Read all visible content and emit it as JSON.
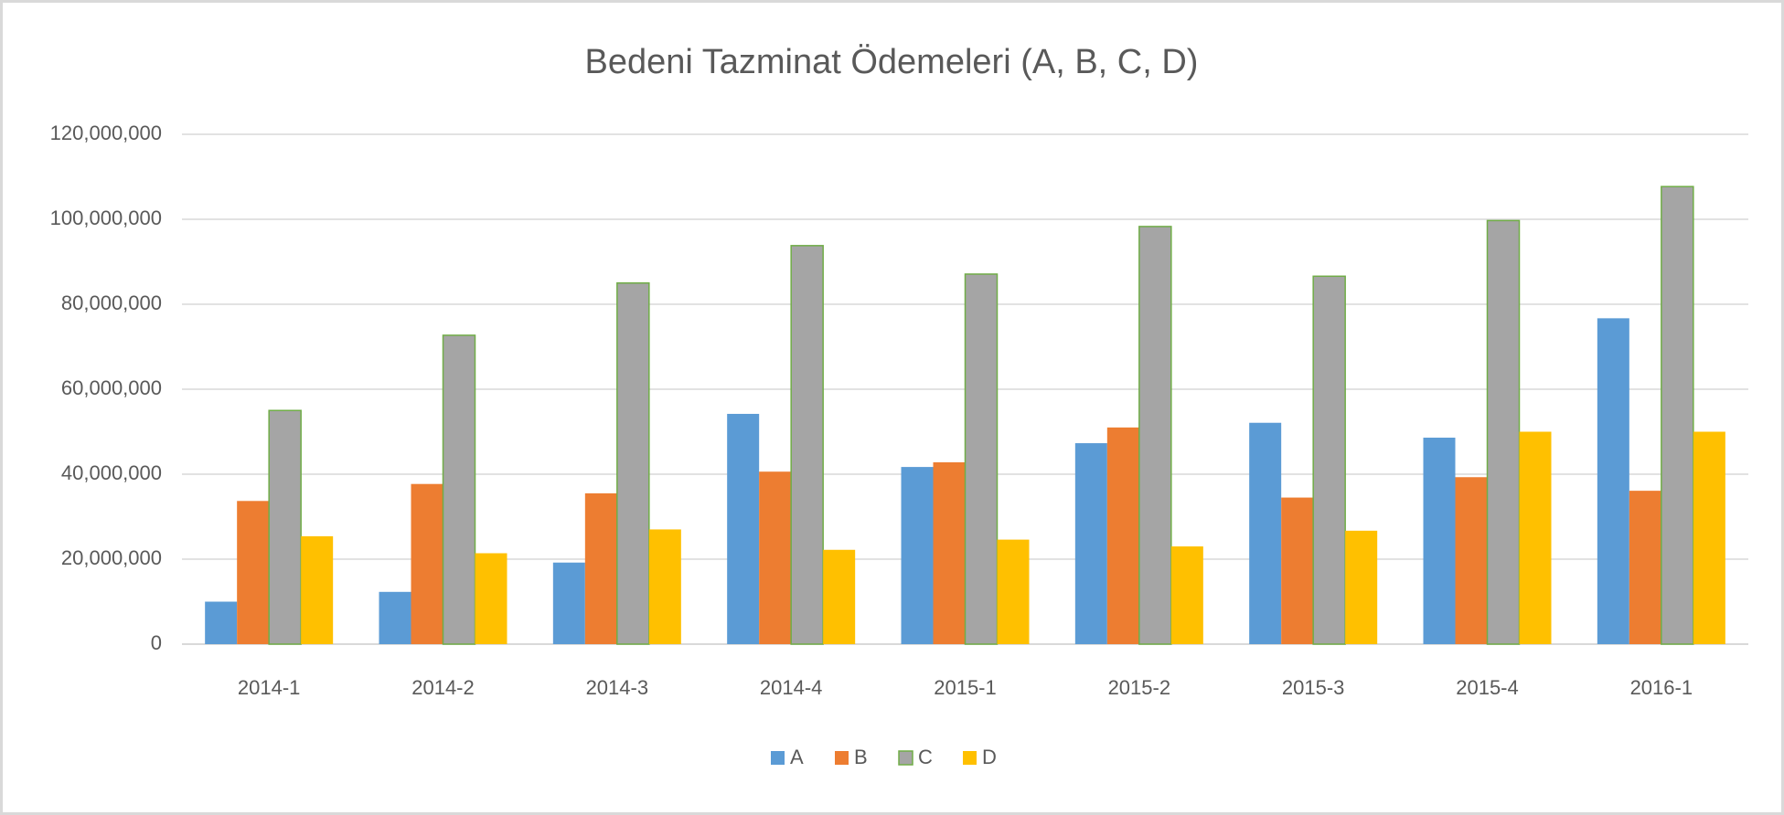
{
  "chart_data": {
    "type": "bar",
    "title": "Bedeni Tazminat Ödemeleri (A, B, C, D)",
    "categories": [
      "2014-1",
      "2014-2",
      "2014-3",
      "2014-4",
      "2015-1",
      "2015-2",
      "2015-3",
      "2015-4",
      "2016-1"
    ],
    "series": [
      {
        "name": "A",
        "color": "#5b9bd5",
        "values": [
          10000000,
          12300000,
          19200000,
          54200000,
          41700000,
          47300000,
          52100000,
          48600000,
          76700000
        ]
      },
      {
        "name": "B",
        "color": "#ed7d31",
        "values": [
          33700000,
          37700000,
          35500000,
          40600000,
          42800000,
          51000000,
          34500000,
          39300000,
          36100000
        ]
      },
      {
        "name": "C",
        "color": "#a5a5a5",
        "edgecolor": "#70ad47",
        "values": [
          55000000,
          72700000,
          85000000,
          93800000,
          87100000,
          98300000,
          86600000,
          99700000,
          107700000
        ]
      },
      {
        "name": "D",
        "color": "#ffc000",
        "values": [
          25400000,
          21400000,
          27000000,
          22200000,
          24600000,
          23000000,
          26700000,
          50000000,
          50000000
        ]
      }
    ],
    "ylim": [
      0,
      120000000
    ],
    "yticks": [
      0,
      {
        "value": 20000000,
        "label": "20,000,000"
      },
      {
        "value": 40000000,
        "label": "40,000,000"
      },
      {
        "value": 60000000,
        "label": "60,000,000"
      },
      {
        "value": 80000000,
        "label": "80,000,000"
      },
      {
        "value": 100000000,
        "label": "100,000,000"
      },
      {
        "value": 120000000,
        "label": "120,000,000"
      }
    ],
    "grid": true,
    "legend": "bottom"
  }
}
